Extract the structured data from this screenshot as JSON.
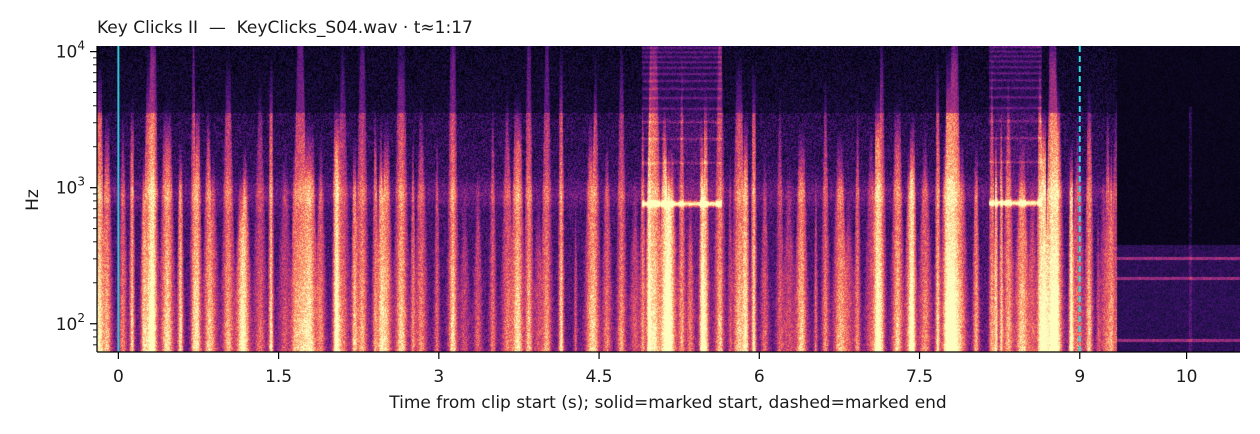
{
  "chart_data": {
    "type": "heatmap",
    "title": "Key Clicks II  —  KeyClicks_S04.wav · t≈1:17",
    "xlabel": "Time from clip start (s); solid=marked start, dashed=marked end",
    "ylabel": "Hz",
    "xlim": [
      -0.2,
      10.5
    ],
    "ylim": [
      62,
      11000
    ],
    "y_scale": "log",
    "x_ticks": [
      0,
      1.5,
      3,
      4.5,
      6,
      7.5,
      9,
      10
    ],
    "x_tick_labels": [
      "0",
      "1.5",
      "3",
      "4.5",
      "6",
      "7.5",
      "9",
      "10"
    ],
    "y_ticks": [
      100,
      1000,
      10000
    ],
    "y_tick_labels": [
      {
        "base": "10",
        "exp": "2"
      },
      {
        "base": "10",
        "exp": "3"
      },
      {
        "base": "10",
        "exp": "4"
      }
    ],
    "colormap": "magma",
    "markers": [
      {
        "kind": "solid",
        "x": 0.0,
        "color": "#2ec4d6"
      },
      {
        "kind": "dashed",
        "x": 9.0,
        "color": "#22e0e6"
      }
    ],
    "sound_end_s": 9.35,
    "tonal_bands": [
      {
        "t_start": 4.9,
        "t_end": 5.65,
        "freq_hz": 760
      },
      {
        "t_start": 8.15,
        "t_end": 8.65,
        "freq_hz": 770
      }
    ],
    "tail_hum_hz": [
      300,
      215,
      75
    ]
  }
}
